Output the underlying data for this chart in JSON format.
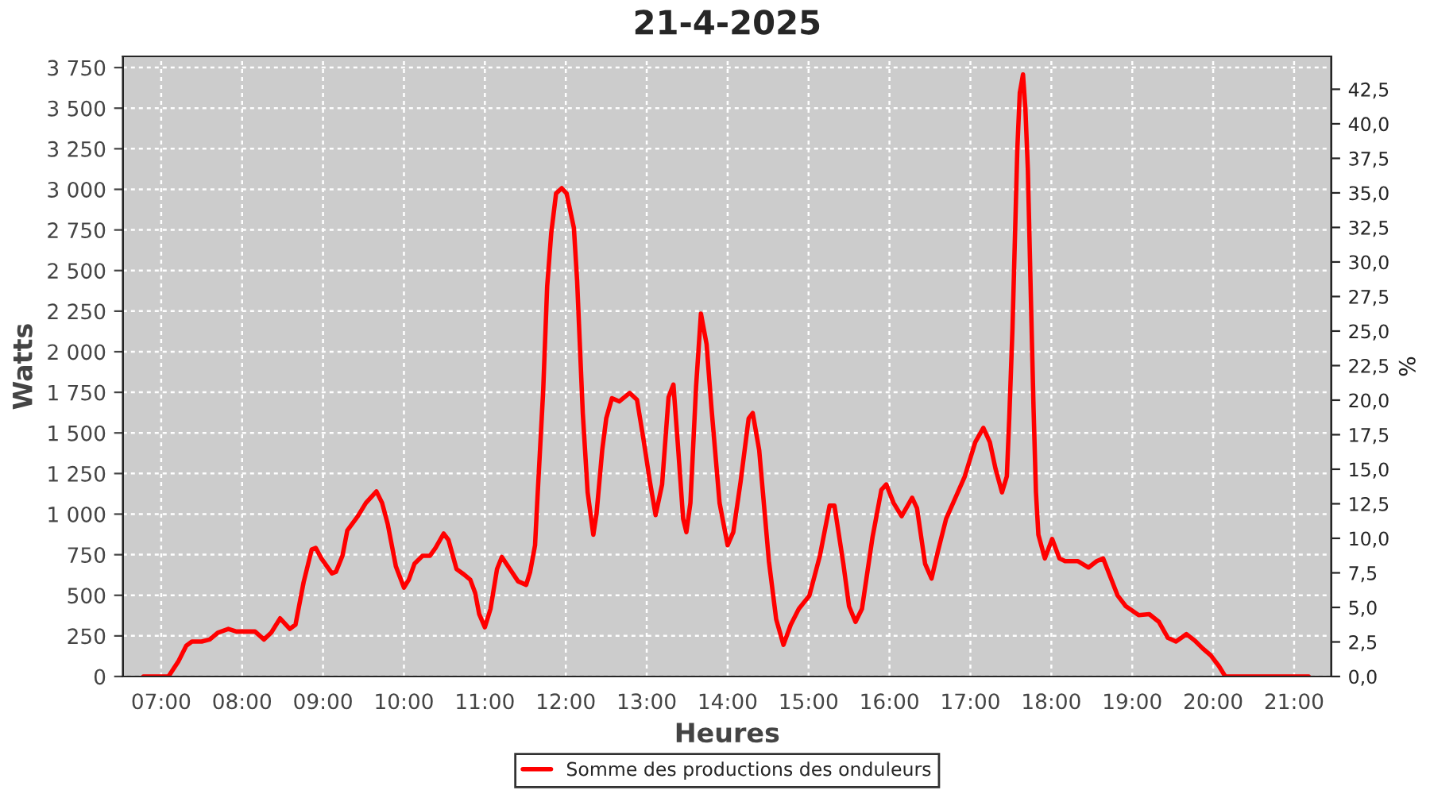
{
  "chart_data": {
    "type": "line",
    "title": "21-4-2025",
    "xlabel": "Heures",
    "ylabel": "Watts",
    "y2label": "%",
    "xlim": [
      6.528,
      21.46
    ],
    "xticks": [
      {
        "value": 7,
        "label": "07:00"
      },
      {
        "value": 8,
        "label": "08:00"
      },
      {
        "value": 9,
        "label": "09:00"
      },
      {
        "value": 10,
        "label": "10:00"
      },
      {
        "value": 11,
        "label": "11:00"
      },
      {
        "value": 12,
        "label": "12:00"
      },
      {
        "value": 13,
        "label": "13:00"
      },
      {
        "value": 14,
        "label": "14:00"
      },
      {
        "value": 15,
        "label": "15:00"
      },
      {
        "value": 16,
        "label": "16:00"
      },
      {
        "value": 17,
        "label": "17:00"
      },
      {
        "value": 18,
        "label": "18:00"
      },
      {
        "value": 19,
        "label": "19:00"
      },
      {
        "value": 20,
        "label": "20:00"
      },
      {
        "value": 21,
        "label": "21:00"
      }
    ],
    "ylim": [
      0,
      3819
    ],
    "yticks": [
      0,
      250,
      500,
      750,
      {
        "value": 1000,
        "label": "1 000"
      },
      {
        "value": 1250,
        "label": "1 250"
      },
      {
        "value": 1500,
        "label": "1 500"
      },
      {
        "value": 1750,
        "label": "1 750"
      },
      {
        "value": 2000,
        "label": "2 000"
      },
      {
        "value": 2250,
        "label": "2 250"
      },
      {
        "value": 2500,
        "label": "2 500"
      },
      {
        "value": 2750,
        "label": "2 750"
      },
      {
        "value": 3000,
        "label": "3 000"
      },
      {
        "value": 3250,
        "label": "3 250"
      },
      {
        "value": 3500,
        "label": "3 500"
      },
      {
        "value": 3750,
        "label": "3 750"
      }
    ],
    "y2lim": [
      0,
      44.88
    ],
    "y2ticks": [
      {
        "value": 0,
        "label": "0,0"
      },
      {
        "value": 2.5,
        "label": "2,5"
      },
      {
        "value": 5,
        "label": "5,0"
      },
      {
        "value": 7.5,
        "label": "7,5"
      },
      {
        "value": 10,
        "label": "10,0"
      },
      {
        "value": 12.5,
        "label": "12,5"
      },
      {
        "value": 15,
        "label": "15,0"
      },
      {
        "value": 17.5,
        "label": "17,5"
      },
      {
        "value": 20,
        "label": "20,0"
      },
      {
        "value": 22.5,
        "label": "22,5"
      },
      {
        "value": 25,
        "label": "25,0"
      },
      {
        "value": 27.5,
        "label": "27,5"
      },
      {
        "value": 30,
        "label": "30,0"
      },
      {
        "value": 32.5,
        "label": "32,5"
      },
      {
        "value": 35,
        "label": "35,0"
      },
      {
        "value": 37.5,
        "label": "37,5"
      },
      {
        "value": 40,
        "label": "40,0"
      },
      {
        "value": 42.5,
        "label": "42,5"
      }
    ],
    "grid": true,
    "legend": "bottom",
    "line_style": "solid",
    "marker": "none",
    "series": [
      {
        "name": "Somme des productions des onduleurs",
        "color": "#ff0000",
        "x": [
          6.78,
          7.09,
          7.21,
          7.31,
          7.38,
          7.5,
          7.6,
          7.7,
          7.83,
          7.93,
          8.16,
          8.27,
          8.36,
          8.47,
          8.59,
          8.66,
          8.76,
          8.86,
          8.91,
          8.98,
          9.11,
          9.16,
          9.24,
          9.3,
          9.43,
          9.53,
          9.66,
          9.73,
          9.8,
          9.9,
          10.0,
          10.06,
          10.13,
          10.23,
          10.32,
          10.39,
          10.49,
          10.55,
          10.65,
          10.74,
          10.82,
          10.88,
          10.93,
          11.0,
          11.07,
          11.15,
          11.21,
          11.31,
          11.41,
          11.51,
          11.56,
          11.62,
          11.65,
          11.72,
          11.77,
          11.82,
          11.88,
          11.95,
          12.01,
          12.1,
          12.14,
          12.21,
          12.27,
          12.34,
          12.38,
          12.45,
          12.5,
          12.57,
          12.66,
          12.79,
          12.88,
          12.96,
          13.04,
          13.11,
          13.19,
          13.27,
          13.33,
          13.39,
          13.45,
          13.49,
          13.54,
          13.61,
          13.67,
          13.74,
          13.8,
          13.9,
          14.0,
          14.07,
          14.16,
          14.26,
          14.31,
          14.39,
          14.51,
          14.6,
          14.69,
          14.78,
          14.88,
          15.01,
          15.14,
          15.26,
          15.32,
          15.43,
          15.5,
          15.58,
          15.66,
          15.79,
          15.9,
          15.96,
          16.05,
          16.15,
          16.28,
          16.34,
          16.44,
          16.52,
          16.6,
          16.7,
          16.83,
          16.93,
          17.06,
          17.16,
          17.24,
          17.31,
          17.39,
          17.45,
          17.48,
          17.52,
          17.55,
          17.58,
          17.61,
          17.65,
          17.68,
          17.71,
          17.75,
          17.78,
          17.81,
          17.84,
          17.92,
          18.01,
          18.1,
          18.17,
          18.33,
          18.46,
          18.56,
          18.64,
          18.73,
          18.82,
          18.92,
          19.08,
          19.21,
          19.33,
          19.44,
          19.54,
          19.67,
          19.77,
          19.87,
          19.97,
          20.07,
          20.15,
          21.18
        ],
        "values": [
          0,
          0,
          91,
          189,
          215,
          215,
          228,
          270,
          293,
          277,
          277,
          228,
          270,
          358,
          293,
          319,
          580,
          782,
          792,
          727,
          635,
          645,
          743,
          899,
          987,
          1069,
          1140,
          1069,
          938,
          678,
          547,
          596,
          694,
          743,
          743,
          792,
          880,
          841,
          661,
          629,
          596,
          515,
          384,
          303,
          417,
          661,
          736,
          661,
          586,
          564,
          645,
          808,
          1101,
          1753,
          2404,
          2730,
          2975,
          3007,
          2975,
          2763,
          2437,
          1622,
          1134,
          873,
          1003,
          1394,
          1590,
          1714,
          1694,
          1746,
          1704,
          1460,
          1199,
          994,
          1183,
          1720,
          1798,
          1394,
          971,
          889,
          1069,
          1785,
          2235,
          2046,
          1655,
          1069,
          808,
          889,
          1199,
          1590,
          1622,
          1394,
          710,
          352,
          195,
          319,
          417,
          498,
          743,
          1052,
          1052,
          694,
          433,
          336,
          417,
          857,
          1150,
          1183,
          1069,
          987,
          1101,
          1036,
          694,
          603,
          775,
          971,
          1118,
          1232,
          1443,
          1531,
          1443,
          1280,
          1134,
          1232,
          1590,
          2144,
          2698,
          3251,
          3594,
          3708,
          3490,
          3121,
          2274,
          1655,
          1134,
          873,
          727,
          847,
          727,
          710,
          710,
          671,
          710,
          727,
          612,
          498,
          433,
          378,
          384,
          336,
          238,
          215,
          261,
          222,
          173,
          130,
          65,
          0,
          0
        ]
      }
    ]
  }
}
